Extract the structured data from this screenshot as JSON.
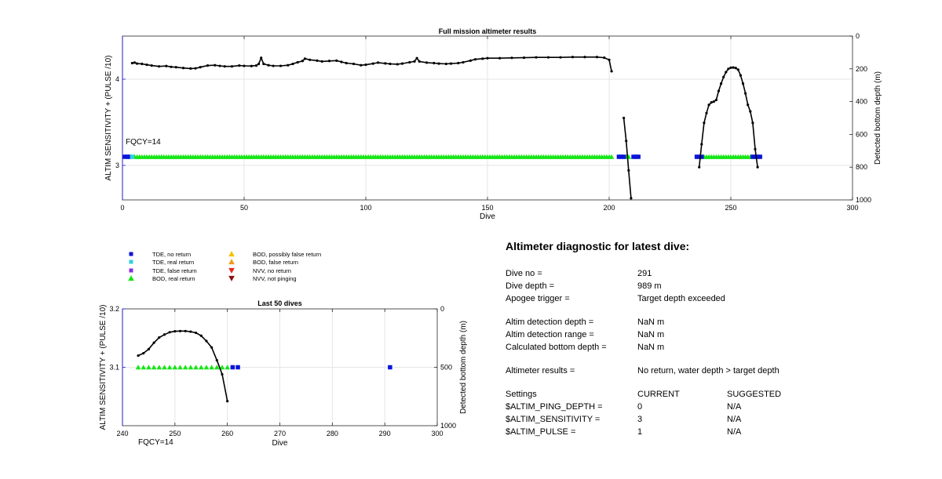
{
  "colors": {
    "axis": "#262626",
    "grid": "#e6e6e6",
    "blue_axis": "#1a1ad6",
    "tde_no_return": "#0a14d8",
    "tde_real_return": "#34d0e0",
    "tde_false_return": "#8a2be2",
    "bod_real_return": "#14e614",
    "bod_possibly_false": "#f2c200",
    "bod_false": "#f29a1a",
    "nvv_no_return": "#e52a1e",
    "nvv_not_pinging": "#8c1010",
    "depth_line": "#000000",
    "fqcy": "#a0a0a0"
  },
  "legend": [
    {
      "label": "TDE, no return",
      "marker": "square",
      "color_key": "tde_no_return"
    },
    {
      "label": "TDE, real return",
      "marker": "square",
      "color_key": "tde_real_return"
    },
    {
      "label": "TDE, false return",
      "marker": "square",
      "color_key": "tde_false_return"
    },
    {
      "label": "BOD, real return",
      "marker": "triangle-up",
      "color_key": "bod_real_return"
    },
    {
      "label": "BOD, possibly false return",
      "marker": "triangle-up",
      "color_key": "bod_possibly_false"
    },
    {
      "label": "BOD, false return",
      "marker": "triangle-up",
      "color_key": "bod_false"
    },
    {
      "label": "NVV, no return",
      "marker": "triangle-down",
      "color_key": "nvv_no_return"
    },
    {
      "label": "NVV, not pinging",
      "marker": "triangle-down",
      "color_key": "nvv_not_pinging"
    }
  ],
  "chart_data": [
    {
      "id": "full",
      "type": "scatter",
      "title": "Full mission altimeter results",
      "xlabel": "Dive",
      "ylabel_left": "ALTIM SENSITIVITY + (PULSE /10)",
      "ylabel_right": "Detected bottom depth (m)",
      "annotation": "FQCY=14",
      "xlim": [
        0,
        300
      ],
      "xticks": [
        0,
        50,
        100,
        150,
        200,
        250,
        300
      ],
      "ylim_left": [
        2.6,
        4.5
      ],
      "yticks_left": [
        3,
        4
      ],
      "ylim_right": [
        0,
        1000
      ],
      "yticks_right": [
        0,
        200,
        400,
        600,
        800,
        1000
      ],
      "right_reversed": true,
      "grid": true,
      "marker_y": 3.1,
      "tde_no_return_dives": [
        1,
        2,
        3,
        204,
        205,
        206,
        210,
        211,
        212,
        236,
        237,
        238,
        259,
        260,
        261,
        262
      ],
      "tde_real_return_dives": [
        4
      ],
      "bod_real_return_range": [
        5,
        201
      ],
      "bod_real_return_dives_extra": [
        207,
        208,
        239,
        240,
        241,
        242,
        243,
        244,
        245,
        246,
        247,
        248,
        249,
        250,
        251,
        252,
        253,
        254,
        255,
        256,
        257,
        258
      ],
      "bottom_depth_segments": [
        [
          [
            4,
            165
          ],
          [
            5,
            162
          ],
          [
            6,
            168
          ],
          [
            8,
            170
          ],
          [
            10,
            175
          ],
          [
            12,
            180
          ],
          [
            15,
            185
          ],
          [
            18,
            183
          ],
          [
            20,
            188
          ],
          [
            22,
            190
          ],
          [
            25,
            195
          ],
          [
            28,
            198
          ],
          [
            30,
            197
          ],
          [
            32,
            190
          ],
          [
            35,
            180
          ],
          [
            38,
            178
          ],
          [
            40,
            182
          ],
          [
            42,
            185
          ],
          [
            45,
            185
          ],
          [
            48,
            180
          ],
          [
            50,
            182
          ],
          [
            53,
            183
          ],
          [
            55,
            180
          ],
          [
            56,
            170
          ],
          [
            57,
            133
          ],
          [
            58,
            170
          ],
          [
            60,
            178
          ],
          [
            62,
            182
          ],
          [
            65,
            182
          ],
          [
            68,
            178
          ],
          [
            70,
            170
          ],
          [
            72,
            160
          ],
          [
            74,
            152
          ],
          [
            75,
            138
          ],
          [
            77,
            145
          ],
          [
            80,
            150
          ],
          [
            82,
            155
          ],
          [
            85,
            152
          ],
          [
            88,
            150
          ],
          [
            90,
            158
          ],
          [
            92,
            165
          ],
          [
            95,
            170
          ],
          [
            98,
            178
          ],
          [
            100,
            175
          ],
          [
            103,
            168
          ],
          [
            105,
            162
          ],
          [
            108,
            167
          ],
          [
            110,
            170
          ],
          [
            113,
            172
          ],
          [
            115,
            168
          ],
          [
            118,
            160
          ],
          [
            120,
            155
          ],
          [
            121,
            135
          ],
          [
            122,
            155
          ],
          [
            125,
            162
          ],
          [
            128,
            165
          ],
          [
            130,
            168
          ],
          [
            133,
            170
          ],
          [
            135,
            168
          ],
          [
            138,
            165
          ],
          [
            140,
            160
          ],
          [
            143,
            150
          ],
          [
            145,
            142
          ],
          [
            148,
            138
          ],
          [
            150,
            135
          ],
          [
            155,
            135
          ],
          [
            160,
            133
          ],
          [
            165,
            132
          ],
          [
            170,
            130
          ],
          [
            175,
            130
          ],
          [
            180,
            130
          ],
          [
            185,
            128
          ],
          [
            190,
            128
          ],
          [
            195,
            128
          ],
          [
            198,
            132
          ],
          [
            200,
            145
          ],
          [
            201,
            215
          ]
        ],
        [
          [
            206,
            500
          ],
          [
            207,
            640
          ],
          [
            208,
            820
          ],
          [
            209,
            990
          ]
        ],
        [
          [
            237,
            800
          ],
          [
            238,
            660
          ],
          [
            239,
            530
          ],
          [
            240,
            470
          ],
          [
            241,
            420
          ],
          [
            242,
            405
          ],
          [
            243,
            400
          ],
          [
            244,
            390
          ],
          [
            245,
            335
          ],
          [
            246,
            290
          ],
          [
            247,
            250
          ],
          [
            248,
            220
          ],
          [
            249,
            200
          ],
          [
            250,
            193
          ],
          [
            251,
            192
          ],
          [
            252,
            195
          ],
          [
            253,
            205
          ],
          [
            254,
            240
          ],
          [
            255,
            290
          ],
          [
            256,
            350
          ],
          [
            257,
            420
          ],
          [
            258,
            460
          ],
          [
            259,
            530
          ],
          [
            260,
            690
          ],
          [
            261,
            800
          ]
        ]
      ]
    },
    {
      "id": "last50",
      "type": "scatter",
      "title": "Last 50 dives",
      "xlabel": "Dive",
      "ylabel_left": "ALTIM SENSITIVITY + (PULSE /10)",
      "ylabel_right": "Detected bottom depth (m)",
      "annotation": "FQCY=14",
      "xlim": [
        240,
        300
      ],
      "xticks": [
        240,
        250,
        260,
        270,
        280,
        290,
        300
      ],
      "ylim_left": [
        3.0,
        3.2
      ],
      "yticks_left": [
        3.1,
        3.2
      ],
      "ylim_right": [
        0,
        1000
      ],
      "yticks_right": [
        0,
        500,
        1000
      ],
      "right_reversed": true,
      "grid": true,
      "marker_y": 3.1,
      "tde_no_return_dives": [
        261,
        262,
        291
      ],
      "bod_real_return_dives": [
        243,
        244,
        245,
        246,
        247,
        248,
        249,
        250,
        251,
        252,
        253,
        254,
        255,
        256,
        257,
        258,
        259,
        260
      ],
      "bottom_depth_segments": [
        [
          [
            243,
            400
          ],
          [
            244,
            380
          ],
          [
            245,
            345
          ],
          [
            246,
            290
          ],
          [
            247,
            245
          ],
          [
            248,
            220
          ],
          [
            249,
            200
          ],
          [
            250,
            192
          ],
          [
            251,
            190
          ],
          [
            252,
            190
          ],
          [
            253,
            195
          ],
          [
            254,
            205
          ],
          [
            255,
            230
          ],
          [
            256,
            275
          ],
          [
            257,
            330
          ],
          [
            258,
            440
          ],
          [
            259,
            560
          ],
          [
            260,
            790
          ]
        ]
      ]
    }
  ],
  "diagnostic": {
    "title": "Altimeter diagnostic for latest dive:",
    "dive_no_label": "Dive no =",
    "dive_no_value": "291",
    "dive_depth_label": "Dive depth =",
    "dive_depth_value": "989 m",
    "apogee_label": "Apogee trigger =",
    "apogee_value": "Target depth exceeded",
    "det_depth_label": "Altim detection depth =",
    "det_depth_value": "NaN m",
    "det_range_label": "Altim detection range =",
    "det_range_value": "NaN m",
    "calc_bottom_label": "Calculated bottom depth =",
    "calc_bottom_value": "NaN m",
    "results_label": "Altimeter results =",
    "results_value": "No return, water depth > target depth",
    "settings_label": "Settings",
    "current_label": "CURRENT",
    "suggested_label": "SUGGESTED",
    "ping_depth_label": "$ALTIM_PING_DEPTH =",
    "ping_depth_current": "0",
    "ping_depth_suggested": "N/A",
    "sensitivity_label": "$ALTIM_SENSITIVITY =",
    "sensitivity_current": "3",
    "sensitivity_suggested": "N/A",
    "pulse_label": "$ALTIM_PULSE =",
    "pulse_current": "1",
    "pulse_suggested": "N/A"
  }
}
